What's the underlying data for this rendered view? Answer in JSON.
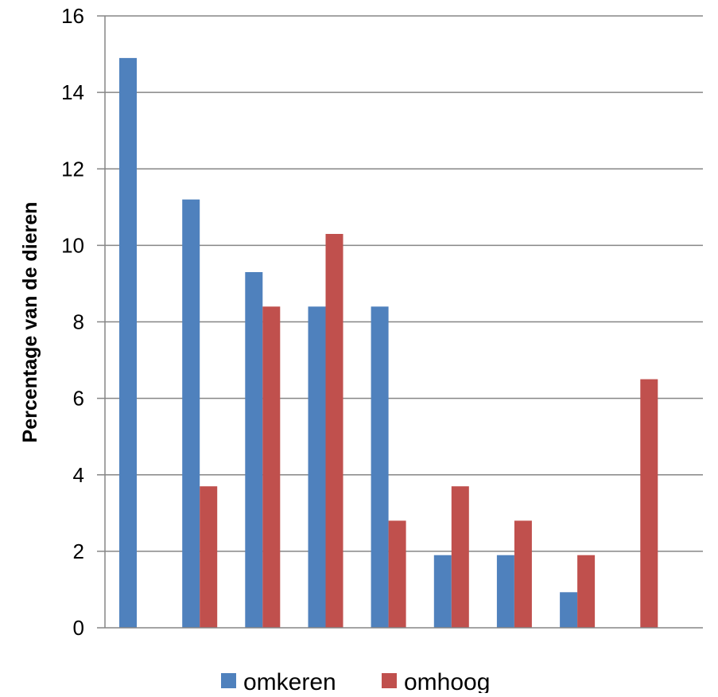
{
  "chart_data": {
    "type": "bar",
    "title": "",
    "xlabel": "",
    "ylabel": "Percentage van de dieren",
    "ylim": [
      0,
      16
    ],
    "yticks": [
      0,
      2,
      4,
      6,
      8,
      10,
      12,
      14,
      16
    ],
    "categories": [
      "",
      "",
      "",
      "",
      "",
      "",
      "",
      "",
      ""
    ],
    "series": [
      {
        "name": "omkeren",
        "color": "#4F81BD",
        "values": [
          14.9,
          11.2,
          9.3,
          8.4,
          8.4,
          1.9,
          1.9,
          0.93,
          0
        ]
      },
      {
        "name": "omhoog",
        "color": "#C0504D",
        "values": [
          0,
          3.7,
          8.4,
          10.3,
          2.8,
          3.7,
          2.8,
          1.9,
          6.5
        ]
      }
    ],
    "grid": true,
    "legend_position": "bottom"
  }
}
